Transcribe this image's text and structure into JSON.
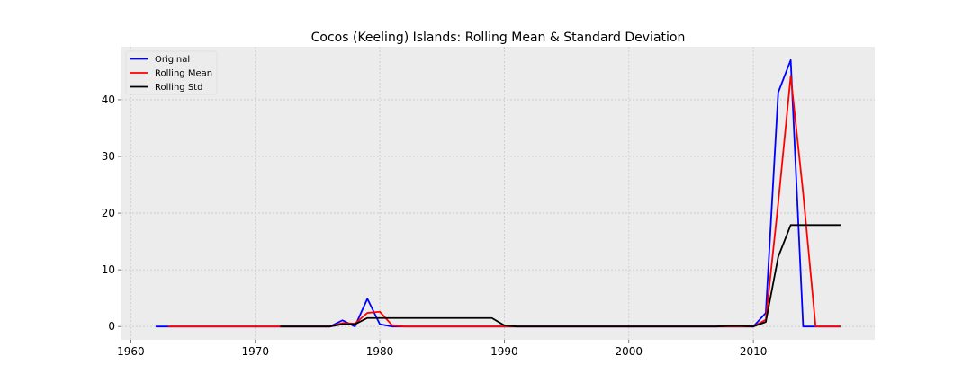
{
  "chart_data": {
    "type": "line",
    "title": "Cocos (Keeling) Islands: Rolling Mean & Standard Deviation",
    "xlabel": "",
    "ylabel": "",
    "xlim": [
      1959.25,
      2019.75
    ],
    "ylim": [
      -2.35,
      49.35
    ],
    "x_ticks": [
      1960,
      1970,
      1980,
      1990,
      2000,
      2010
    ],
    "y_ticks": [
      0,
      10,
      20,
      30,
      40
    ],
    "grid": true,
    "legend_position": "top-left",
    "series": [
      {
        "name": "Original",
        "color": "#0000ff",
        "points": [
          [
            1962,
            0
          ],
          [
            1963,
            0
          ],
          [
            1964,
            0
          ],
          [
            1965,
            0
          ],
          [
            1966,
            0
          ],
          [
            1967,
            0
          ],
          [
            1968,
            0
          ],
          [
            1969,
            0
          ],
          [
            1970,
            0
          ],
          [
            1971,
            0
          ],
          [
            1972,
            0
          ],
          [
            1973,
            0
          ],
          [
            1974,
            0
          ],
          [
            1975,
            0
          ],
          [
            1976,
            0
          ],
          [
            1977,
            1.1
          ],
          [
            1978,
            0
          ],
          [
            1979,
            4.9
          ],
          [
            1980,
            0.4
          ],
          [
            1981,
            0
          ],
          [
            1982,
            0
          ],
          [
            1983,
            0
          ],
          [
            1984,
            0
          ],
          [
            1985,
            0
          ],
          [
            1986,
            0
          ],
          [
            1987,
            0
          ],
          [
            1988,
            0
          ],
          [
            1989,
            0
          ],
          [
            1990,
            0
          ],
          [
            1991,
            0
          ],
          [
            1992,
            0
          ],
          [
            1993,
            0
          ],
          [
            1994,
            0
          ],
          [
            1995,
            0
          ],
          [
            1996,
            0
          ],
          [
            1997,
            0
          ],
          [
            1998,
            0
          ],
          [
            1999,
            0
          ],
          [
            2000,
            0
          ],
          [
            2001,
            0
          ],
          [
            2002,
            0
          ],
          [
            2003,
            0
          ],
          [
            2004,
            0
          ],
          [
            2005,
            0
          ],
          [
            2006,
            0
          ],
          [
            2007,
            0
          ],
          [
            2008,
            0
          ],
          [
            2009,
            0
          ],
          [
            2010,
            0
          ],
          [
            2011,
            2.4
          ],
          [
            2012,
            41.3
          ],
          [
            2013,
            47.0
          ],
          [
            2014,
            0
          ],
          [
            2015,
            0
          ],
          [
            2016,
            0
          ],
          [
            2017,
            0
          ]
        ]
      },
      {
        "name": "Rolling Mean",
        "color": "#ff0000",
        "points": [
          [
            1963,
            0
          ],
          [
            1964,
            0
          ],
          [
            1965,
            0
          ],
          [
            1966,
            0
          ],
          [
            1967,
            0
          ],
          [
            1968,
            0
          ],
          [
            1969,
            0
          ],
          [
            1970,
            0
          ],
          [
            1971,
            0
          ],
          [
            1972,
            0
          ],
          [
            1973,
            0
          ],
          [
            1974,
            0
          ],
          [
            1975,
            0
          ],
          [
            1976,
            0
          ],
          [
            1977,
            0.6
          ],
          [
            1978,
            0.5
          ],
          [
            1979,
            2.4
          ],
          [
            1980,
            2.6
          ],
          [
            1981,
            0.2
          ],
          [
            1982,
            0
          ],
          [
            1983,
            0
          ],
          [
            1984,
            0
          ],
          [
            1985,
            0
          ],
          [
            1986,
            0
          ],
          [
            1987,
            0
          ],
          [
            1988,
            0
          ],
          [
            1989,
            0
          ],
          [
            1990,
            0
          ],
          [
            1991,
            0
          ],
          [
            1992,
            0
          ],
          [
            1993,
            0
          ],
          [
            1994,
            0
          ],
          [
            1995,
            0
          ],
          [
            1996,
            0
          ],
          [
            1997,
            0
          ],
          [
            1998,
            0
          ],
          [
            1999,
            0
          ],
          [
            2000,
            0
          ],
          [
            2001,
            0
          ],
          [
            2002,
            0
          ],
          [
            2003,
            0
          ],
          [
            2004,
            0
          ],
          [
            2005,
            0
          ],
          [
            2006,
            0
          ],
          [
            2007,
            0
          ],
          [
            2008,
            0
          ],
          [
            2009,
            0
          ],
          [
            2010,
            0
          ],
          [
            2011,
            1.2
          ],
          [
            2012,
            21.8
          ],
          [
            2013,
            44.2
          ],
          [
            2014,
            23.5
          ],
          [
            2015,
            0
          ],
          [
            2016,
            0
          ],
          [
            2017,
            0
          ]
        ]
      },
      {
        "name": "Rolling Std",
        "color": "#000000",
        "points": [
          [
            1972,
            0
          ],
          [
            1973,
            0
          ],
          [
            1974,
            0
          ],
          [
            1975,
            0
          ],
          [
            1976,
            0
          ],
          [
            1977,
            0.4
          ],
          [
            1978,
            0.4
          ],
          [
            1979,
            1.5
          ],
          [
            1980,
            1.5
          ],
          [
            1981,
            1.5
          ],
          [
            1982,
            1.5
          ],
          [
            1983,
            1.5
          ],
          [
            1984,
            1.5
          ],
          [
            1985,
            1.5
          ],
          [
            1986,
            1.5
          ],
          [
            1987,
            1.5
          ],
          [
            1988,
            1.5
          ],
          [
            1989,
            1.5
          ],
          [
            1990,
            0.2
          ],
          [
            1991,
            0
          ],
          [
            1992,
            0
          ],
          [
            1993,
            0
          ],
          [
            1994,
            0
          ],
          [
            1995,
            0
          ],
          [
            1996,
            0
          ],
          [
            1997,
            0
          ],
          [
            1998,
            0
          ],
          [
            1999,
            0
          ],
          [
            2000,
            0
          ],
          [
            2001,
            0
          ],
          [
            2002,
            0
          ],
          [
            2003,
            0
          ],
          [
            2004,
            0
          ],
          [
            2005,
            0
          ],
          [
            2006,
            0
          ],
          [
            2007,
            0
          ],
          [
            2008,
            0.1
          ],
          [
            2009,
            0.1
          ],
          [
            2010,
            0
          ],
          [
            2011,
            0.8
          ],
          [
            2012,
            12.3
          ],
          [
            2013,
            17.9
          ],
          [
            2014,
            17.9
          ],
          [
            2015,
            17.9
          ],
          [
            2016,
            17.9
          ],
          [
            2017,
            17.9
          ]
        ]
      }
    ]
  },
  "colors": {
    "plot_background": "#ececec",
    "grid": "#c8c8c8",
    "figure_background": "#ffffff"
  }
}
